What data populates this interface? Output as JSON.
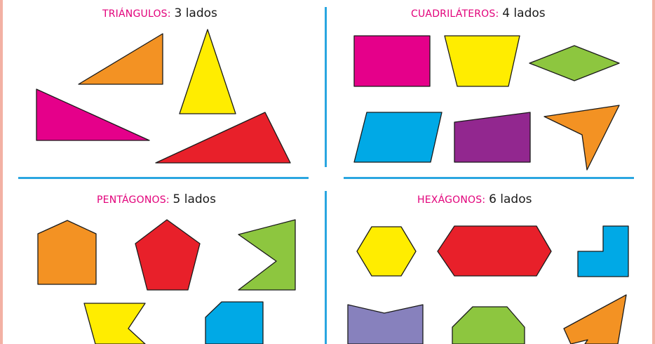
{
  "colors": {
    "magenta": "#e5008a",
    "orange": "#f39223",
    "yellow": "#ffed00",
    "red": "#e8202a",
    "green": "#8dc63f",
    "cyan": "#00a9e6",
    "purple": "#92278f",
    "lavender": "#8781bd",
    "divider": "#2aa6e0",
    "heading_keyword": "#e2007a"
  },
  "sections": {
    "triangles": {
      "keyword": "TRIÁNGULOS",
      "separator": ":",
      "rest": "3 lados",
      "shapes": [
        {
          "name": "orange-triangle",
          "color": "orange",
          "sides": 3
        },
        {
          "name": "yellow-triangle",
          "color": "yellow",
          "sides": 3
        },
        {
          "name": "magenta-triangle",
          "color": "magenta",
          "sides": 3
        },
        {
          "name": "red-triangle",
          "color": "red",
          "sides": 3
        }
      ]
    },
    "quadrilaterals": {
      "keyword": "CUADRILÁTEROS",
      "separator": ":",
      "rest": "4 lados",
      "shapes": [
        {
          "name": "magenta-rectangle",
          "color": "magenta",
          "sides": 4
        },
        {
          "name": "yellow-trapezoid",
          "color": "yellow",
          "sides": 4
        },
        {
          "name": "green-rhombus",
          "color": "green",
          "sides": 4
        },
        {
          "name": "cyan-parallelogram",
          "color": "cyan",
          "sides": 4
        },
        {
          "name": "purple-quadrilateral",
          "color": "purple",
          "sides": 4
        },
        {
          "name": "orange-concave-quadrilateral",
          "color": "orange",
          "sides": 4
        }
      ]
    },
    "pentagons": {
      "keyword": "PENTÁGONOS",
      "separator": ":",
      "rest": "5 lados",
      "shapes": [
        {
          "name": "orange-house-pentagon",
          "color": "orange",
          "sides": 5
        },
        {
          "name": "red-regular-pentagon",
          "color": "red",
          "sides": 5
        },
        {
          "name": "green-concave-pentagon",
          "color": "green",
          "sides": 5
        },
        {
          "name": "yellow-concave-pentagon",
          "color": "yellow",
          "sides": 5
        },
        {
          "name": "cyan-pentagon",
          "color": "cyan",
          "sides": 5
        }
      ]
    },
    "hexagons": {
      "keyword": "HEXÁGONOS",
      "separator": ":",
      "rest": "6 lados",
      "shapes": [
        {
          "name": "yellow-regular-hexagon",
          "color": "yellow",
          "sides": 6
        },
        {
          "name": "red-elongated-hexagon",
          "color": "red",
          "sides": 6
        },
        {
          "name": "cyan-l-hexagon",
          "color": "cyan",
          "sides": 6
        },
        {
          "name": "lavender-concave-hexagon",
          "color": "lavender",
          "sides": 6
        },
        {
          "name": "green-hexagon",
          "color": "green",
          "sides": 6
        },
        {
          "name": "orange-concave-hexagon",
          "color": "orange",
          "sides": 6
        }
      ]
    }
  }
}
